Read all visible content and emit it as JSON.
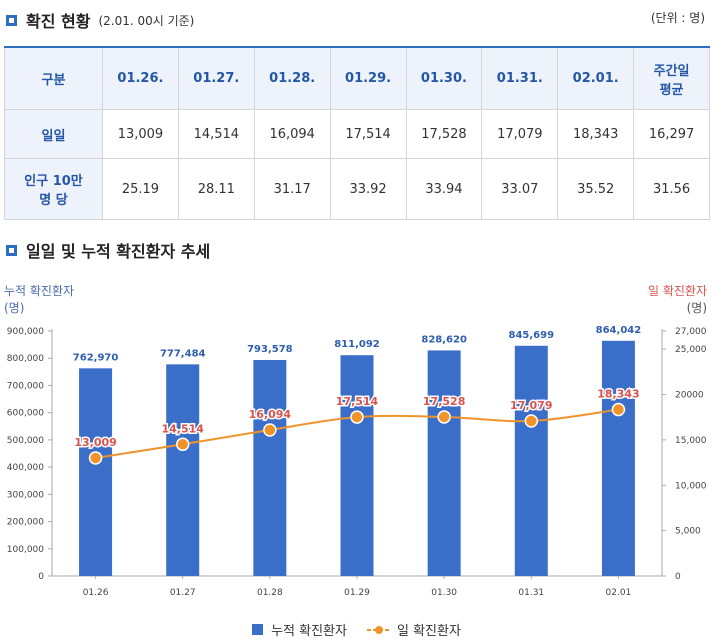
{
  "section1": {
    "title": "확진 현황",
    "subtitle": "(2.01. 00시 기준)",
    "unit": "(단위 : 명)"
  },
  "table": {
    "headers": [
      "구분",
      "01.26.",
      "01.27.",
      "01.28.",
      "01.29.",
      "01.30.",
      "01.31.",
      "02.01.",
      "주간일 평균"
    ],
    "rows": [
      {
        "label": "일일",
        "values": [
          "13,009",
          "14,514",
          "16,094",
          "17,514",
          "17,528",
          "17,079",
          "18,343",
          "16,297"
        ]
      },
      {
        "label": "인구 10만 명 당",
        "values": [
          "25.19",
          "28.11",
          "31.17",
          "33.92",
          "33.94",
          "33.07",
          "35.52",
          "31.56"
        ]
      }
    ]
  },
  "section2": {
    "title": "일일 및 누적 확진환자 추세"
  },
  "colors": {
    "accent": "#2c6fc0",
    "bar": "#3a6ec9",
    "line": "#f0932b",
    "right_axis": "#d9534f",
    "left_axis": "#4a6aa8"
  },
  "chart_data": {
    "type": "bar",
    "categories": [
      "01.26",
      "01.27",
      "01.28",
      "01.29",
      "01.30",
      "01.31",
      "02.01"
    ],
    "series": [
      {
        "name": "누적 확진환자",
        "kind": "bar",
        "axis": "left",
        "values": [
          762970,
          777484,
          793578,
          811092,
          828620,
          845699,
          864042
        ],
        "labels": [
          "762,970",
          "777,484",
          "793,578",
          "811,092",
          "828,620",
          "845,699",
          "864,042"
        ]
      },
      {
        "name": "일 확진환자",
        "kind": "line",
        "axis": "right",
        "values": [
          13009,
          14514,
          16094,
          17514,
          17528,
          17079,
          18343
        ],
        "labels": [
          "13,009",
          "14,514",
          "16,094",
          "17,514",
          "17,528",
          "17,079",
          "18,343"
        ]
      }
    ],
    "ylabel_left": "누적 확진환자 (명)",
    "ylabel_left_lines": [
      "누적 확진환자",
      "(명)"
    ],
    "ylabel_right": "일 확진환자 (명)",
    "ylabel_right_lines": [
      "일 확진환자",
      "(명)"
    ],
    "ylim_left": [
      0,
      900000
    ],
    "ylim_right": [
      0,
      27000
    ],
    "yticks_left": [
      "0",
      "100,000",
      "200,000",
      "300,000",
      "400,000",
      "500,000",
      "600,000",
      "700,000",
      "800,000",
      "900,000"
    ],
    "yticks_right": [
      {
        "value": 0,
        "label": "0"
      },
      {
        "value": 5000,
        "label": "5,000"
      },
      {
        "value": 10000,
        "label": "10,000"
      },
      {
        "value": 15000,
        "label": "15,000"
      },
      {
        "value": 20000,
        "label": "20000"
      },
      {
        "value": 25000,
        "label": "25,000"
      },
      {
        "value": 27000,
        "label": "27,000"
      }
    ],
    "legend": [
      "누적 확진환자",
      "일 확진환자"
    ],
    "legend_position": "bottom"
  }
}
